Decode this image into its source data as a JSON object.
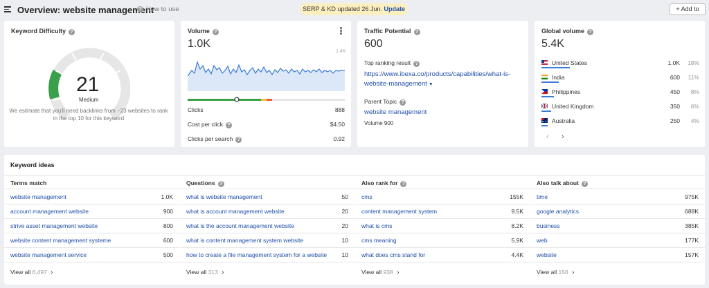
{
  "header": {
    "title": "Overview: website management",
    "how_to_use": "How to use",
    "banner_text": "SERP & KD updated 26 Jun.",
    "banner_link": "Update",
    "add_to": "+ Add to"
  },
  "kd": {
    "title": "Keyword Difficulty",
    "value": "21",
    "label": "Medium",
    "note": "We estimate that you'll need backlinks from ~23 websites to rank in the top 10 for this keyword",
    "colors": {
      "filled": "#3aa04b",
      "track": "#e6e6e6"
    }
  },
  "volume": {
    "title": "Volume",
    "value": "1.0K",
    "chart_max_label": "1.4K",
    "rows": [
      {
        "label": "Clicks",
        "value": "888"
      },
      {
        "label": "Cost per click",
        "value": "$4.50"
      },
      {
        "label": "Clicks per search",
        "value": "0.92"
      }
    ]
  },
  "traffic": {
    "title": "Traffic Potential",
    "value": "600",
    "top_ranking_label": "Top ranking result",
    "top_url_line1": "https://www.ibexa.co/products/capabilities/what-is-",
    "top_url_line2": "website-management",
    "parent_topic_label": "Parent Topic",
    "parent_topic": "website management",
    "parent_volume": "Volume 900"
  },
  "global": {
    "title": "Global volume",
    "value": "5.4K",
    "countries": [
      {
        "name": "United States",
        "value": "1.0K",
        "pct": "18%",
        "share": 0.18
      },
      {
        "name": "India",
        "value": "600",
        "pct": "11%",
        "share": 0.11
      },
      {
        "name": "Philippines",
        "value": "450",
        "pct": "8%",
        "share": 0.08
      },
      {
        "name": "United Kingdom",
        "value": "350",
        "pct": "6%",
        "share": 0.06
      },
      {
        "name": "Australia",
        "value": "250",
        "pct": "4%",
        "share": 0.04
      }
    ]
  },
  "ideas": {
    "title": "Keyword ideas",
    "columns": [
      {
        "heading": "Terms match",
        "rows": [
          {
            "k": "website management",
            "n": "1.0K"
          },
          {
            "k": "account management website",
            "n": "900"
          },
          {
            "k": "strive asset management website",
            "n": "800"
          },
          {
            "k": "website content management systeme",
            "n": "600"
          },
          {
            "k": "website management service",
            "n": "500"
          }
        ],
        "view_all": "View all",
        "count": "6,497"
      },
      {
        "heading": "Questions",
        "rows": [
          {
            "k": "what is website management",
            "n": "50"
          },
          {
            "k": "what is account management website",
            "n": "20"
          },
          {
            "k": "what is the account management website",
            "n": "20"
          },
          {
            "k": "what is content management system website",
            "n": "10"
          },
          {
            "k": "how to create a file management system for a website",
            "n": "10"
          }
        ],
        "view_all": "View all",
        "count": "313"
      },
      {
        "heading": "Also rank for",
        "rows": [
          {
            "k": "cms",
            "n": "155K"
          },
          {
            "k": "content management system",
            "n": "9.5K"
          },
          {
            "k": "what is cms",
            "n": "8.2K"
          },
          {
            "k": "cms meaning",
            "n": "5.9K"
          },
          {
            "k": "what does cms stand for",
            "n": "4.4K"
          }
        ],
        "view_all": "View all",
        "count": "938"
      },
      {
        "heading": "Also talk about",
        "rows": [
          {
            "k": "time",
            "n": "975K"
          },
          {
            "k": "google analytics",
            "n": "688K"
          },
          {
            "k": "business",
            "n": "385K"
          },
          {
            "k": "web",
            "n": "177K"
          },
          {
            "k": "website",
            "n": "157K"
          }
        ],
        "view_all": "View all",
        "count": "156"
      }
    ]
  }
}
